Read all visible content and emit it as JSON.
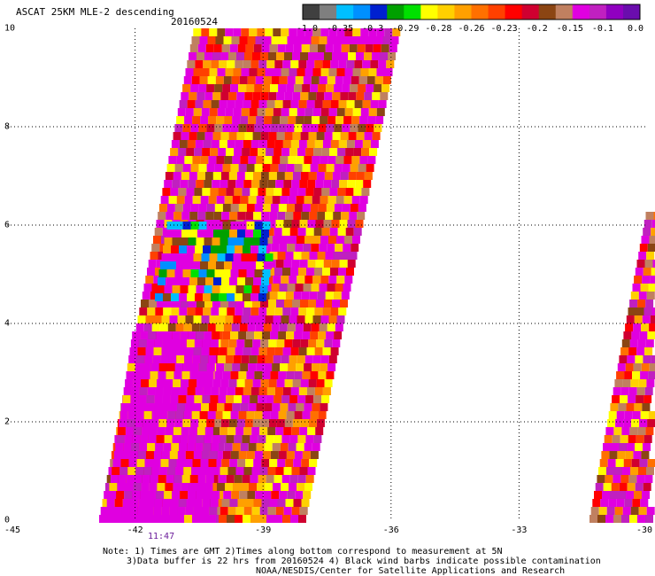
{
  "header": {
    "title": "ASCAT 25KM MLE-2 descending",
    "date": "20160524"
  },
  "colorbar": {
    "colors": [
      "#404040",
      "#7f7f7f",
      "#00bfff",
      "#0090ff",
      "#0020d0",
      "#00a000",
      "#00e000",
      "#ffff00",
      "#ffd000",
      "#ffa000",
      "#ff7000",
      "#ff4000",
      "#ff0000",
      "#d00030",
      "#8b4513",
      "#c08060",
      "#e000e0",
      "#c020c0",
      "#9000c0",
      "#6a0dad"
    ],
    "labels": [
      "-1.0",
      "-0.35",
      "-0.3",
      "-0.29",
      "-0.28",
      "-0.26",
      "-0.23",
      "-0.2",
      "-0.15",
      "-0.1",
      "0.0"
    ]
  },
  "axes": {
    "x_ticks": [
      "-45",
      "-42",
      "-39",
      "-36",
      "-33",
      "-30"
    ],
    "y_ticks": [
      "0",
      "2",
      "4",
      "6",
      "8",
      "10"
    ],
    "x_range": [
      -45,
      -30
    ],
    "y_range": [
      0,
      10
    ]
  },
  "swath": {
    "time_label": "11:47"
  },
  "footer": {
    "note1": "Note: 1) Times are GMT 2)Times along bottom correspond to measurement at 5N",
    "note2": "3)Data buffer is 22 hrs from 20160524 4) Black wind barbs indicate possible contamination",
    "note3": "NOAA/NESDIS/Center for Satellite Applications and Research"
  }
}
